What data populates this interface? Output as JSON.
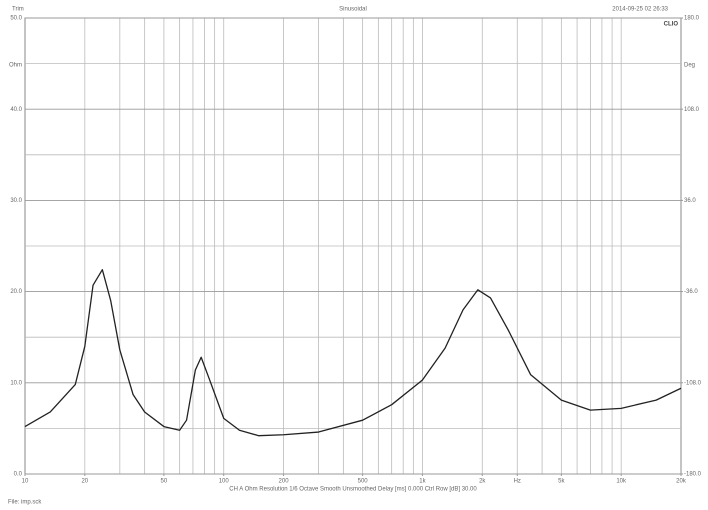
{
  "chart_data": {
    "type": "line",
    "title": "Sinusoidal",
    "header_left": "Trim",
    "header_right": "2014-09-25 02 26:33",
    "brand": "CLIO",
    "y_label": "Ohm",
    "y2_label": "Deg",
    "footer": "CH A   Ohm   Resolution 1/6 Octave   Smooth Unsmoothed   Delay [ms] 0.000   Ctrl Row [dB] 30.00",
    "file_label": "File: imp.sck",
    "log_x": true,
    "grid": true,
    "xlim": [
      10,
      20000
    ],
    "xticks": [
      10,
      20,
      50,
      100,
      200,
      500,
      {
        "value": 1000,
        "label": "1k"
      },
      {
        "value": 2000,
        "label": "2k"
      },
      {
        "value": 3000,
        "label": "Hz"
      },
      {
        "value": 5000,
        "label": "5k"
      },
      {
        "value": 10000,
        "label": "10k"
      },
      {
        "value": 20000,
        "label": "20k"
      }
    ],
    "xgrid": [
      20,
      30,
      40,
      50,
      60,
      70,
      80,
      90,
      100,
      200,
      300,
      400,
      500,
      600,
      700,
      800,
      900,
      1000,
      2000,
      3000,
      4000,
      5000,
      6000,
      7000,
      8000,
      9000,
      10000
    ],
    "ylim": [
      0,
      50
    ],
    "yticks": [
      {
        "value": 0,
        "label": "0.0"
      },
      {
        "value": 10,
        "label": "10.0"
      },
      {
        "value": 20,
        "label": "20.0"
      },
      {
        "value": 30,
        "label": "30.0"
      },
      {
        "value": 40,
        "label": "40.0"
      },
      {
        "value": 50,
        "label": "50.0"
      }
    ],
    "ygrid": [
      5,
      15,
      25,
      35,
      45
    ],
    "y2lim": [
      -180,
      180
    ],
    "y2ticks": [
      {
        "value": -180,
        "label": "-180.0"
      },
      {
        "value": -108,
        "label": "-108.0"
      },
      {
        "value": -36,
        "label": "-36.0"
      },
      {
        "value": 36,
        "label": "36.0"
      },
      {
        "value": 108,
        "label": "108.0"
      },
      {
        "value": 180,
        "label": "180.0"
      }
    ],
    "series": [
      {
        "color": "#222222",
        "x": [
          10,
          13.4,
          17.9,
          20,
          22,
          24.5,
          27,
          30,
          35,
          40,
          50,
          60,
          65,
          72,
          77,
          85,
          100,
          120,
          150,
          200,
          300,
          500,
          700,
          1000,
          1300,
          1600,
          1900,
          2200,
          2700,
          3500,
          5000,
          7000,
          10000,
          15000,
          20000
        ],
        "values": [
          5.2,
          6.8,
          9.8,
          14,
          20.7,
          22.4,
          19,
          13.6,
          8.7,
          6.8,
          5.2,
          4.8,
          5.9,
          11.4,
          12.8,
          10.3,
          6.1,
          4.8,
          4.2,
          4.3,
          4.6,
          5.9,
          7.6,
          10.3,
          13.8,
          18,
          20.2,
          19.3,
          15.8,
          10.9,
          8.1,
          7.0,
          7.2,
          8.1,
          9.4
        ]
      }
    ]
  }
}
